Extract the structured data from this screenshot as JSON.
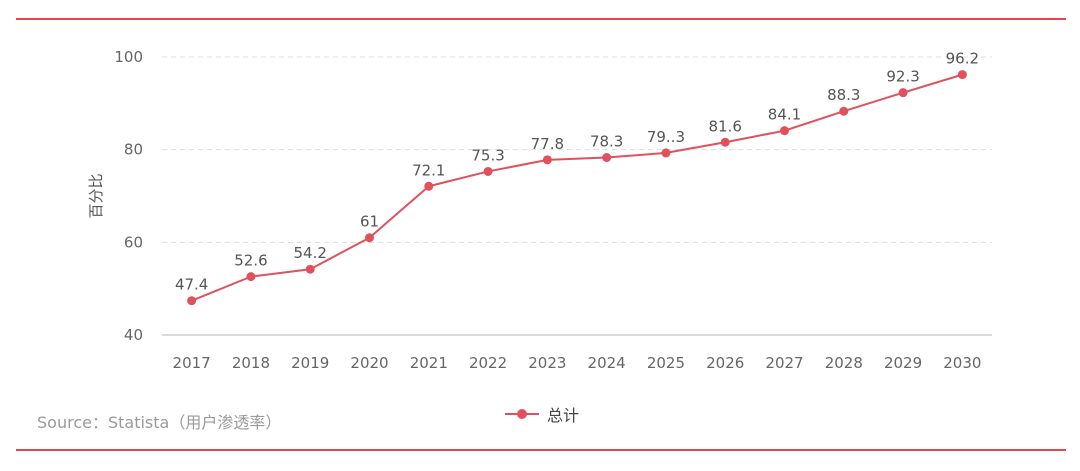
{
  "colors": {
    "accent": "#e5454f",
    "series": "#e0515c",
    "grid": "#dddddd",
    "axis_text": "#666666",
    "label_text": "#555555",
    "source_text": "#9a9a9a"
  },
  "source": "Source：Statista（用户渗透率）",
  "chart_data": {
    "type": "line",
    "title": "",
    "xlabel": "",
    "ylabel": "百分比",
    "ylim": [
      40,
      100
    ],
    "yticks": [
      "40",
      "60",
      "80",
      "100"
    ],
    "grid": "horizontal-dashed",
    "legend_position": "bottom-center",
    "categories": [
      "2017",
      "2018",
      "2019",
      "2020",
      "2021",
      "2022",
      "2023",
      "2024",
      "2025",
      "2026",
      "2027",
      "2028",
      "2029",
      "2030"
    ],
    "series": [
      {
        "name": "总计",
        "values": [
          47.4,
          52.6,
          54.2,
          61,
          72.1,
          75.3,
          77.8,
          78.3,
          79.3,
          81.6,
          84.1,
          88.3,
          92.3,
          96.2
        ],
        "labels": [
          "47.4",
          "52.6",
          "54.2",
          "61",
          "72.1",
          "75.3",
          "77.8",
          "78.3",
          "79..3",
          "81.6",
          "84.1",
          "88.3",
          "92.3",
          "96.2"
        ]
      }
    ]
  }
}
